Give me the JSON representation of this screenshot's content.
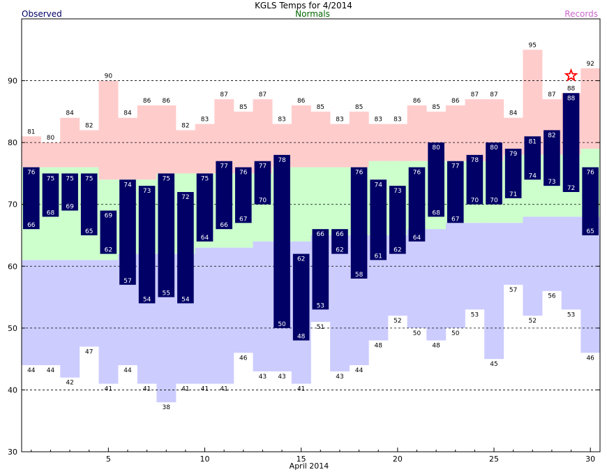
{
  "header": {
    "title": "KGLS Temps for 4/2014",
    "observed_label": "Observed",
    "normals_label": "Normals",
    "records_label": "Records"
  },
  "colors": {
    "observed": "#000066",
    "normals": "#ccffcc",
    "record_high": "#ffcccc",
    "record_low": "#ccccff",
    "observed_text": "#000066",
    "normals_text": "#006600",
    "records_text": "#cc66cc",
    "star": "#ff0000"
  },
  "chart_data": {
    "type": "bar",
    "title": "KGLS Temps for 4/2014",
    "xlabel": "April 2014",
    "ylabel": "",
    "ylim": [
      30,
      100
    ],
    "xlim": [
      1,
      30
    ],
    "grid": "dashed at 40, 50, 60, 70, 80, 90",
    "y_ticks": [
      30,
      40,
      50,
      60,
      70,
      80,
      90
    ],
    "x_ticks": [
      5,
      10,
      15,
      20,
      25,
      30
    ],
    "days": [
      1,
      2,
      3,
      4,
      5,
      6,
      7,
      8,
      9,
      10,
      11,
      12,
      13,
      14,
      15,
      16,
      17,
      18,
      19,
      20,
      21,
      22,
      23,
      24,
      25,
      26,
      27,
      28,
      29,
      30
    ],
    "series": [
      {
        "name": "Observed",
        "high": [
          76,
          75,
          75,
          75,
          69,
          74,
          73,
          75,
          72,
          75,
          77,
          76,
          77,
          78,
          62,
          66,
          66,
          76,
          74,
          73,
          76,
          80,
          77,
          78,
          80,
          79,
          81,
          82,
          88,
          76
        ],
        "low": [
          66,
          68,
          69,
          65,
          62,
          57,
          54,
          55,
          54,
          64,
          66,
          67,
          70,
          50,
          48,
          53,
          62,
          58,
          61,
          62,
          64,
          68,
          67,
          70,
          70,
          71,
          74,
          73,
          72,
          65
        ]
      },
      {
        "name": "Normals",
        "high": [
          76,
          76,
          76,
          76,
          74,
          74,
          74,
          75,
          75,
          75,
          75,
          75,
          75,
          76,
          76,
          76,
          76,
          76,
          77,
          77,
          77,
          77,
          77,
          77,
          77,
          78,
          78,
          78,
          78,
          79
        ],
        "low": [
          61,
          61,
          61,
          61,
          61,
          62,
          62,
          62,
          62,
          63,
          63,
          63,
          64,
          64,
          64,
          65,
          65,
          65,
          65,
          65,
          66,
          66,
          67,
          67,
          67,
          67,
          68,
          68,
          68,
          68
        ]
      },
      {
        "name": "Records",
        "high": [
          81,
          80,
          84,
          82,
          90,
          84,
          86,
          86,
          82,
          83,
          87,
          85,
          87,
          83,
          86,
          85,
          83,
          85,
          83,
          83,
          86,
          85,
          86,
          87,
          87,
          84,
          95,
          87,
          88,
          92
        ],
        "low": [
          44,
          44,
          42,
          47,
          41,
          44,
          41,
          38,
          41,
          41,
          41,
          46,
          43,
          43,
          41,
          51,
          43,
          44,
          48,
          52,
          50,
          48,
          50,
          53,
          45,
          57,
          52,
          56,
          53,
          46
        ]
      }
    ],
    "record_broken_days": [
      29
    ]
  }
}
